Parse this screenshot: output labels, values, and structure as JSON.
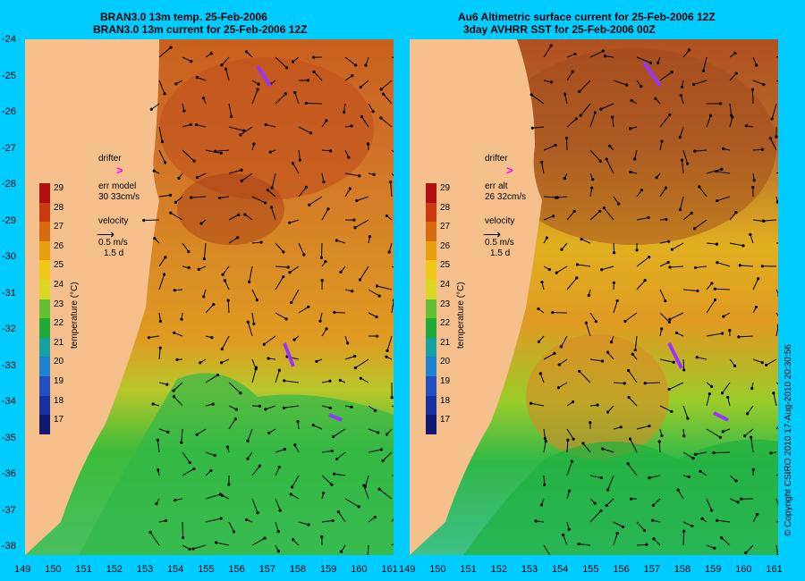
{
  "left_panel": {
    "title_line1": "BRAN3.0 13m temp. 25-Feb-2006",
    "title_line2": "BRAN3.0 13m current for 25-Feb-2006 12Z",
    "drifter_label": "drifter",
    "drifter_symbol": ">",
    "err_label": "err model",
    "err_value": "30 33cm/s",
    "velocity_label": "velocity",
    "velocity_scale": "0.5 m/s",
    "velocity_days": "1.5 d"
  },
  "right_panel": {
    "title_line1": "Au6 Altimetric surface current for 25-Feb-2006 12Z",
    "title_line2": "3day AVHRR SST for 25-Feb-2006 00Z",
    "drifter_label": "drifter",
    "drifter_symbol": ">",
    "err_label": "err alt",
    "err_value": "26 32cm/s",
    "velocity_label": "velocity",
    "velocity_scale": "0.5 m/s",
    "velocity_days": "1.5 d"
  },
  "colorbar": {
    "label": "temperature (°C)",
    "ticks": [
      "29",
      "28",
      "27",
      "26",
      "25",
      "24",
      "23",
      "22",
      "21",
      "20",
      "19",
      "18",
      "17"
    ],
    "range": [
      16.5,
      29.5
    ]
  },
  "lat_ticks": [
    "-24",
    "-25",
    "-26",
    "-27",
    "-28",
    "-29",
    "-30",
    "-31",
    "-32",
    "-33",
    "-34",
    "-35",
    "-36",
    "-37",
    "-38"
  ],
  "lon_ticks_left": [
    "149",
    "150",
    "151",
    "152",
    "153",
    "154",
    "155",
    "156",
    "157",
    "158",
    "159",
    "160",
    "161"
  ],
  "lon_ticks_right": [
    "149",
    "150",
    "151",
    "152",
    "153",
    "154",
    "155",
    "156",
    "157",
    "158",
    "159",
    "160",
    "161"
  ],
  "copyright": "© Copyright CSIRO 2010  17-Aug-2010 20:30:56",
  "colors": {
    "background": "#00ccff",
    "land": "#f5c08c",
    "warm": "#c8501a",
    "mid": "#e8a020",
    "cool": "#22b84a",
    "drifter": "#ff00ff",
    "contour": "#66dddd"
  }
}
